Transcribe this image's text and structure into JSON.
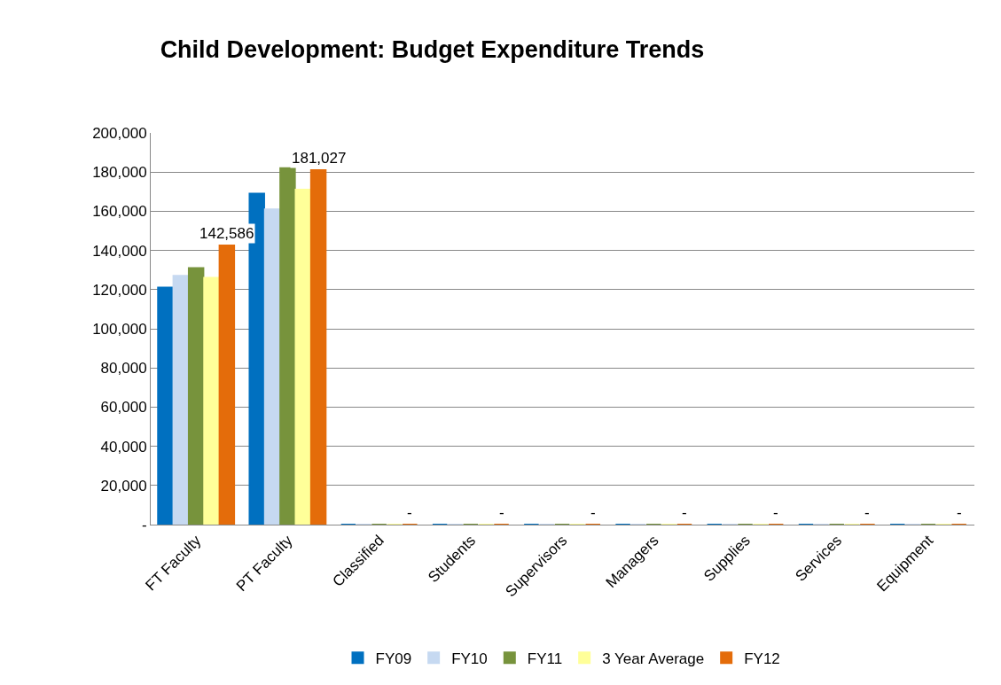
{
  "chart_data": {
    "type": "bar",
    "title": "Child Development: Budget Expenditure Trends",
    "categories": [
      "FT Faculty",
      "PT Faculty",
      "Classified",
      "Students",
      "Supervisors",
      "Managers",
      "Supplies",
      "Services",
      "Equipment"
    ],
    "series": [
      {
        "name": "FY09",
        "color": "#0070c0",
        "values": [
          121000,
          169000,
          0,
          0,
          0,
          0,
          0,
          0,
          0
        ]
      },
      {
        "name": "FY10",
        "color": "#c6d9f1",
        "values": [
          127000,
          161000,
          0,
          0,
          0,
          0,
          0,
          0,
          0
        ]
      },
      {
        "name": "FY11",
        "color": "#77933c",
        "values": [
          131000,
          182000,
          0,
          0,
          0,
          0,
          0,
          0,
          0
        ]
      },
      {
        "name": "3 Year Average",
        "color": "#ffff99",
        "values": [
          126000,
          171000,
          0,
          0,
          0,
          0,
          0,
          0,
          0
        ]
      },
      {
        "name": "FY12",
        "color": "#e46c0a",
        "values": [
          142586,
          181027,
          0,
          0,
          0,
          0,
          0,
          0,
          0
        ],
        "value_labels": [
          "142,586",
          "181,027",
          "-",
          "-",
          "-",
          "-",
          "-",
          "-",
          "-"
        ]
      }
    ],
    "ylim": [
      0,
      200000
    ],
    "yticks": [
      {
        "value": 0,
        "label": "-"
      },
      {
        "value": 20000,
        "label": "20,000"
      },
      {
        "value": 40000,
        "label": "40,000"
      },
      {
        "value": 60000,
        "label": "60,000"
      },
      {
        "value": 80000,
        "label": "80,000"
      },
      {
        "value": 100000,
        "label": "100,000"
      },
      {
        "value": 120000,
        "label": "120,000"
      },
      {
        "value": 140000,
        "label": "140,000"
      },
      {
        "value": 160000,
        "label": "160,000"
      },
      {
        "value": 180000,
        "label": "180,000"
      },
      {
        "value": 200000,
        "label": "200,000"
      }
    ],
    "grid": "y",
    "legend": "bottom"
  }
}
